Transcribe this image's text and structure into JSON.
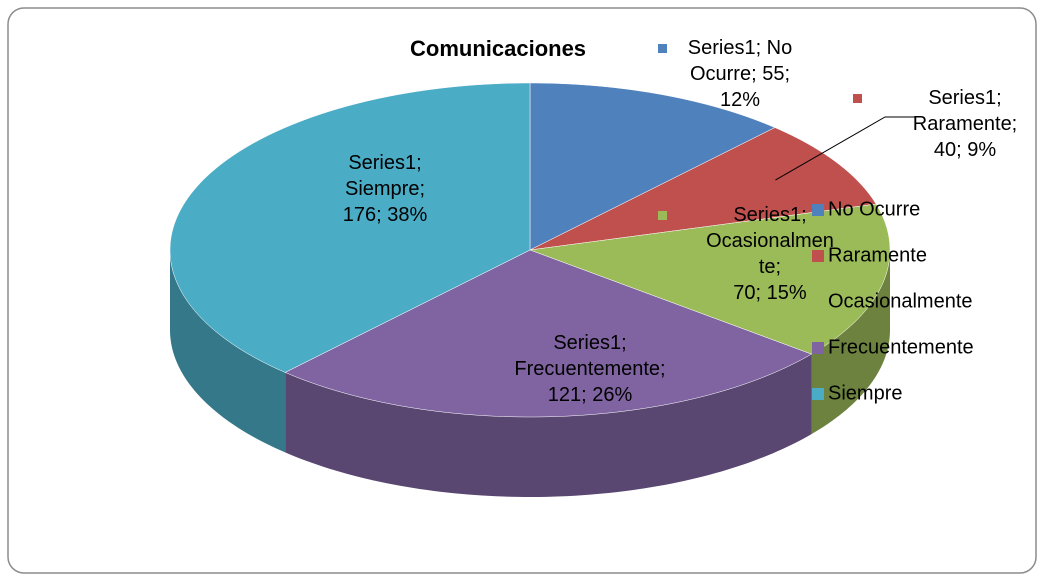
{
  "chart_data": {
    "type": "pie",
    "title": "Comunicaciones",
    "series": [
      {
        "name": "Series1",
        "categories": [
          "No Ocurre",
          "Raramente",
          "Ocasionalmente",
          "Frecuentemente",
          "Siempre"
        ],
        "values": [
          55,
          40,
          70,
          121,
          176
        ],
        "value_labels": [
          "Series1; No Ocurre; 55; 12%",
          "Series1; Raramente; 40; 9%",
          "Series1; Ocasionalmente; 70; 15%",
          "Series1; Frecuentemente; 121; 26%",
          "Series1; Siempre; 176; 38%"
        ],
        "colors": [
          "#4f81bd",
          "#c0504d",
          "#9bbb59",
          "#8064a2",
          "#4bacc6"
        ]
      }
    ],
    "legend": "right"
  }
}
